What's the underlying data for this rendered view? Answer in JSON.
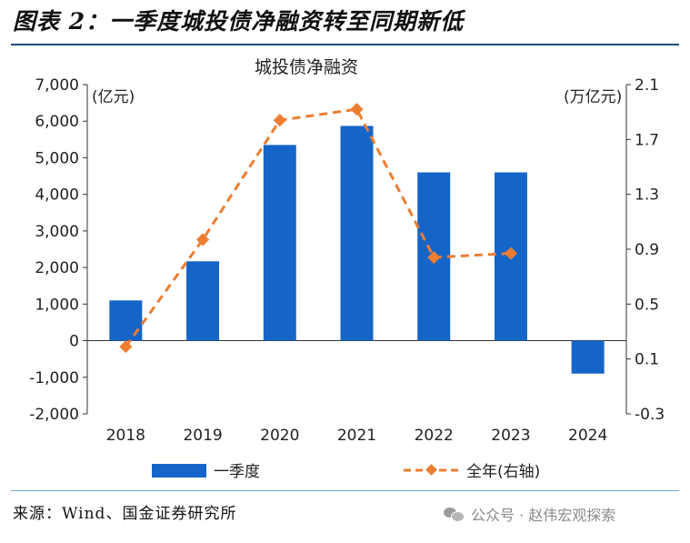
{
  "figure": {
    "title": "图表 2：一季度城投债净融资转至同期新低",
    "source": "来源：Wind、国金证券研究所",
    "watermark": "公众号 · 赵伟宏观探索"
  },
  "colors": {
    "bar": "#1565c8",
    "line": "#ed7d31",
    "title_rule": "#1f4e79"
  },
  "chart_data": {
    "type": "bar",
    "title": "城投债净融资",
    "categories": [
      "2018",
      "2019",
      "2020",
      "2021",
      "2022",
      "2023",
      "2024"
    ],
    "y_left": {
      "unit_label": "(亿元)",
      "ylim": [
        -2000,
        7000
      ],
      "ticks": [
        -2000,
        -1000,
        0,
        1000,
        2000,
        3000,
        4000,
        5000,
        6000,
        7000
      ],
      "tick_labels": [
        "-2,000",
        "-1,000",
        "0",
        "1,000",
        "2,000",
        "3,000",
        "4,000",
        "5,000",
        "6,000",
        "7,000"
      ]
    },
    "y_right": {
      "unit_label": "(万亿元)",
      "ylim": [
        -0.3,
        2.1
      ],
      "ticks": [
        -0.3,
        0.1,
        0.5,
        0.9,
        1.3,
        1.7,
        2.1
      ],
      "tick_labels": [
        "-0.3",
        "0.1",
        "0.5",
        "0.9",
        "1.3",
        "1.7",
        "2.1"
      ]
    },
    "series": [
      {
        "name": "一季度",
        "type": "bar",
        "axis": "left",
        "values": [
          1100,
          2170,
          5350,
          5870,
          4600,
          4600,
          -900
        ]
      },
      {
        "name": "全年(右轴)",
        "type": "line",
        "style": "dashed",
        "marker": "diamond",
        "axis": "right",
        "values": [
          0.19,
          0.97,
          1.84,
          1.92,
          0.84,
          0.87,
          null
        ]
      }
    ],
    "grid": false,
    "legend": "bottom"
  }
}
